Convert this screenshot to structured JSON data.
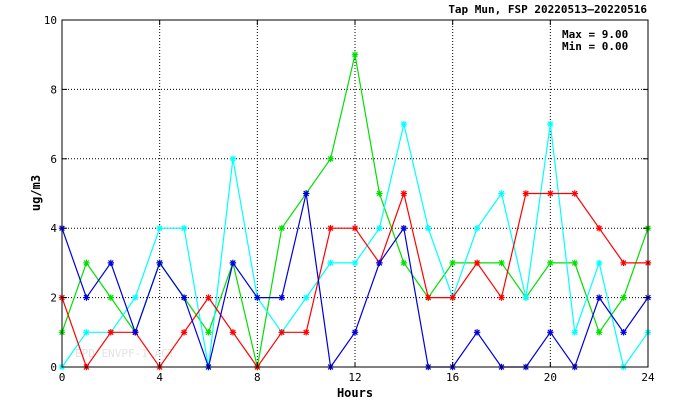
{
  "chart_data": {
    "type": "line",
    "title": "Tap Mun, FSP 20220513–20220516",
    "xlabel": "Hours",
    "ylabel": "ug/m3",
    "xlim": [
      0,
      24
    ],
    "ylim": [
      0,
      10
    ],
    "x_ticks": [
      0,
      4,
      8,
      12,
      16,
      20,
      24
    ],
    "y_ticks": [
      0,
      2,
      4,
      6,
      8,
      10
    ],
    "grid": true,
    "stats": {
      "max_label": "Max = 9.00",
      "min_label": "Min = 0.00"
    },
    "watermark": "EPD ENVPF-1 ACT",
    "x": [
      0,
      1,
      2,
      3,
      4,
      5,
      6,
      7,
      8,
      9,
      10,
      11,
      12,
      13,
      14,
      15,
      16,
      17,
      18,
      19,
      20,
      21,
      22,
      23,
      24
    ],
    "series": [
      {
        "color": "#00e000",
        "values": [
          1,
          3,
          2,
          1,
          3,
          2,
          1,
          3,
          0,
          4,
          5,
          6,
          9,
          5,
          3,
          2,
          3,
          3,
          3,
          2,
          3,
          3,
          1,
          2,
          4
        ]
      },
      {
        "color": "#00ffff",
        "values": [
          0,
          1,
          1,
          2,
          4,
          4,
          0,
          6,
          2,
          1,
          2,
          3,
          3,
          4,
          7,
          4,
          2,
          4,
          5,
          2,
          7,
          1,
          3,
          0,
          1
        ]
      },
      {
        "color": "#ff0000",
        "values": [
          2,
          0,
          1,
          1,
          0,
          1,
          2,
          1,
          0,
          1,
          1,
          4,
          4,
          3,
          5,
          2,
          2,
          3,
          2,
          5,
          5,
          5,
          4,
          3,
          3
        ]
      },
      {
        "color": "#0000dd",
        "values": [
          4,
          2,
          3,
          1,
          3,
          2,
          0,
          3,
          2,
          2,
          5,
          0,
          1,
          3,
          4,
          0,
          0,
          1,
          0,
          0,
          1,
          0,
          2,
          1,
          2
        ]
      }
    ]
  }
}
